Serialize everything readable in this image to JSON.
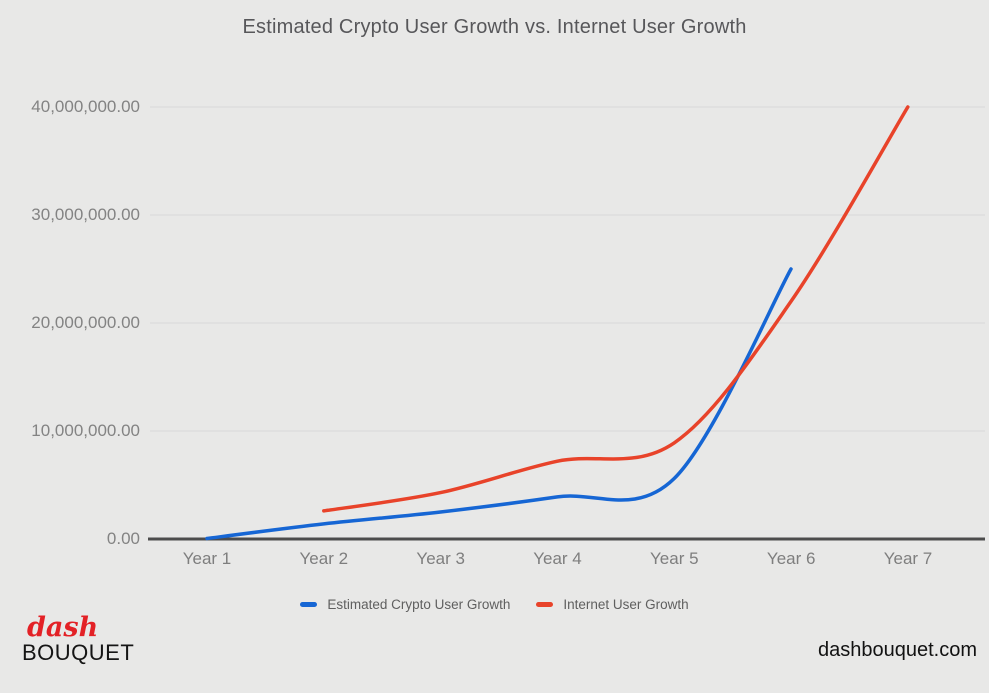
{
  "chart_data": {
    "type": "line",
    "title": "Estimated Crypto User Growth vs. Internet User Growth",
    "categories": [
      "Year 1",
      "Year 2",
      "Year 3",
      "Year 4",
      "Year 5",
      "Year 6",
      "Year 7"
    ],
    "series": [
      {
        "name": "Estimated Crypto User Growth",
        "color": "#1666d4",
        "values": [
          50000,
          1400000,
          2500000,
          3900000,
          5600000,
          25000000,
          null
        ]
      },
      {
        "name": "Internet User Growth",
        "color": "#e8432a",
        "values": [
          null,
          2600000,
          4300000,
          7200000,
          8900000,
          22000000,
          40000000
        ]
      }
    ],
    "y_ticks": [
      "40,000,000.00",
      "30,000,000.00",
      "20,000,000.00",
      "10,000,000.00",
      "0.00"
    ],
    "ylim": [
      0,
      40000000
    ],
    "grid": true,
    "legend_position": "bottom",
    "colors": {
      "background": "#e8e8e7",
      "gridline": "#d8d8d8",
      "axis_line": "#4c4c4c",
      "title_text": "#57575a",
      "tick_text": "#808080"
    }
  },
  "footer": {
    "logo_line1": "dash",
    "logo_line2": "BOUQUET",
    "website": "dashbouquet.com"
  }
}
